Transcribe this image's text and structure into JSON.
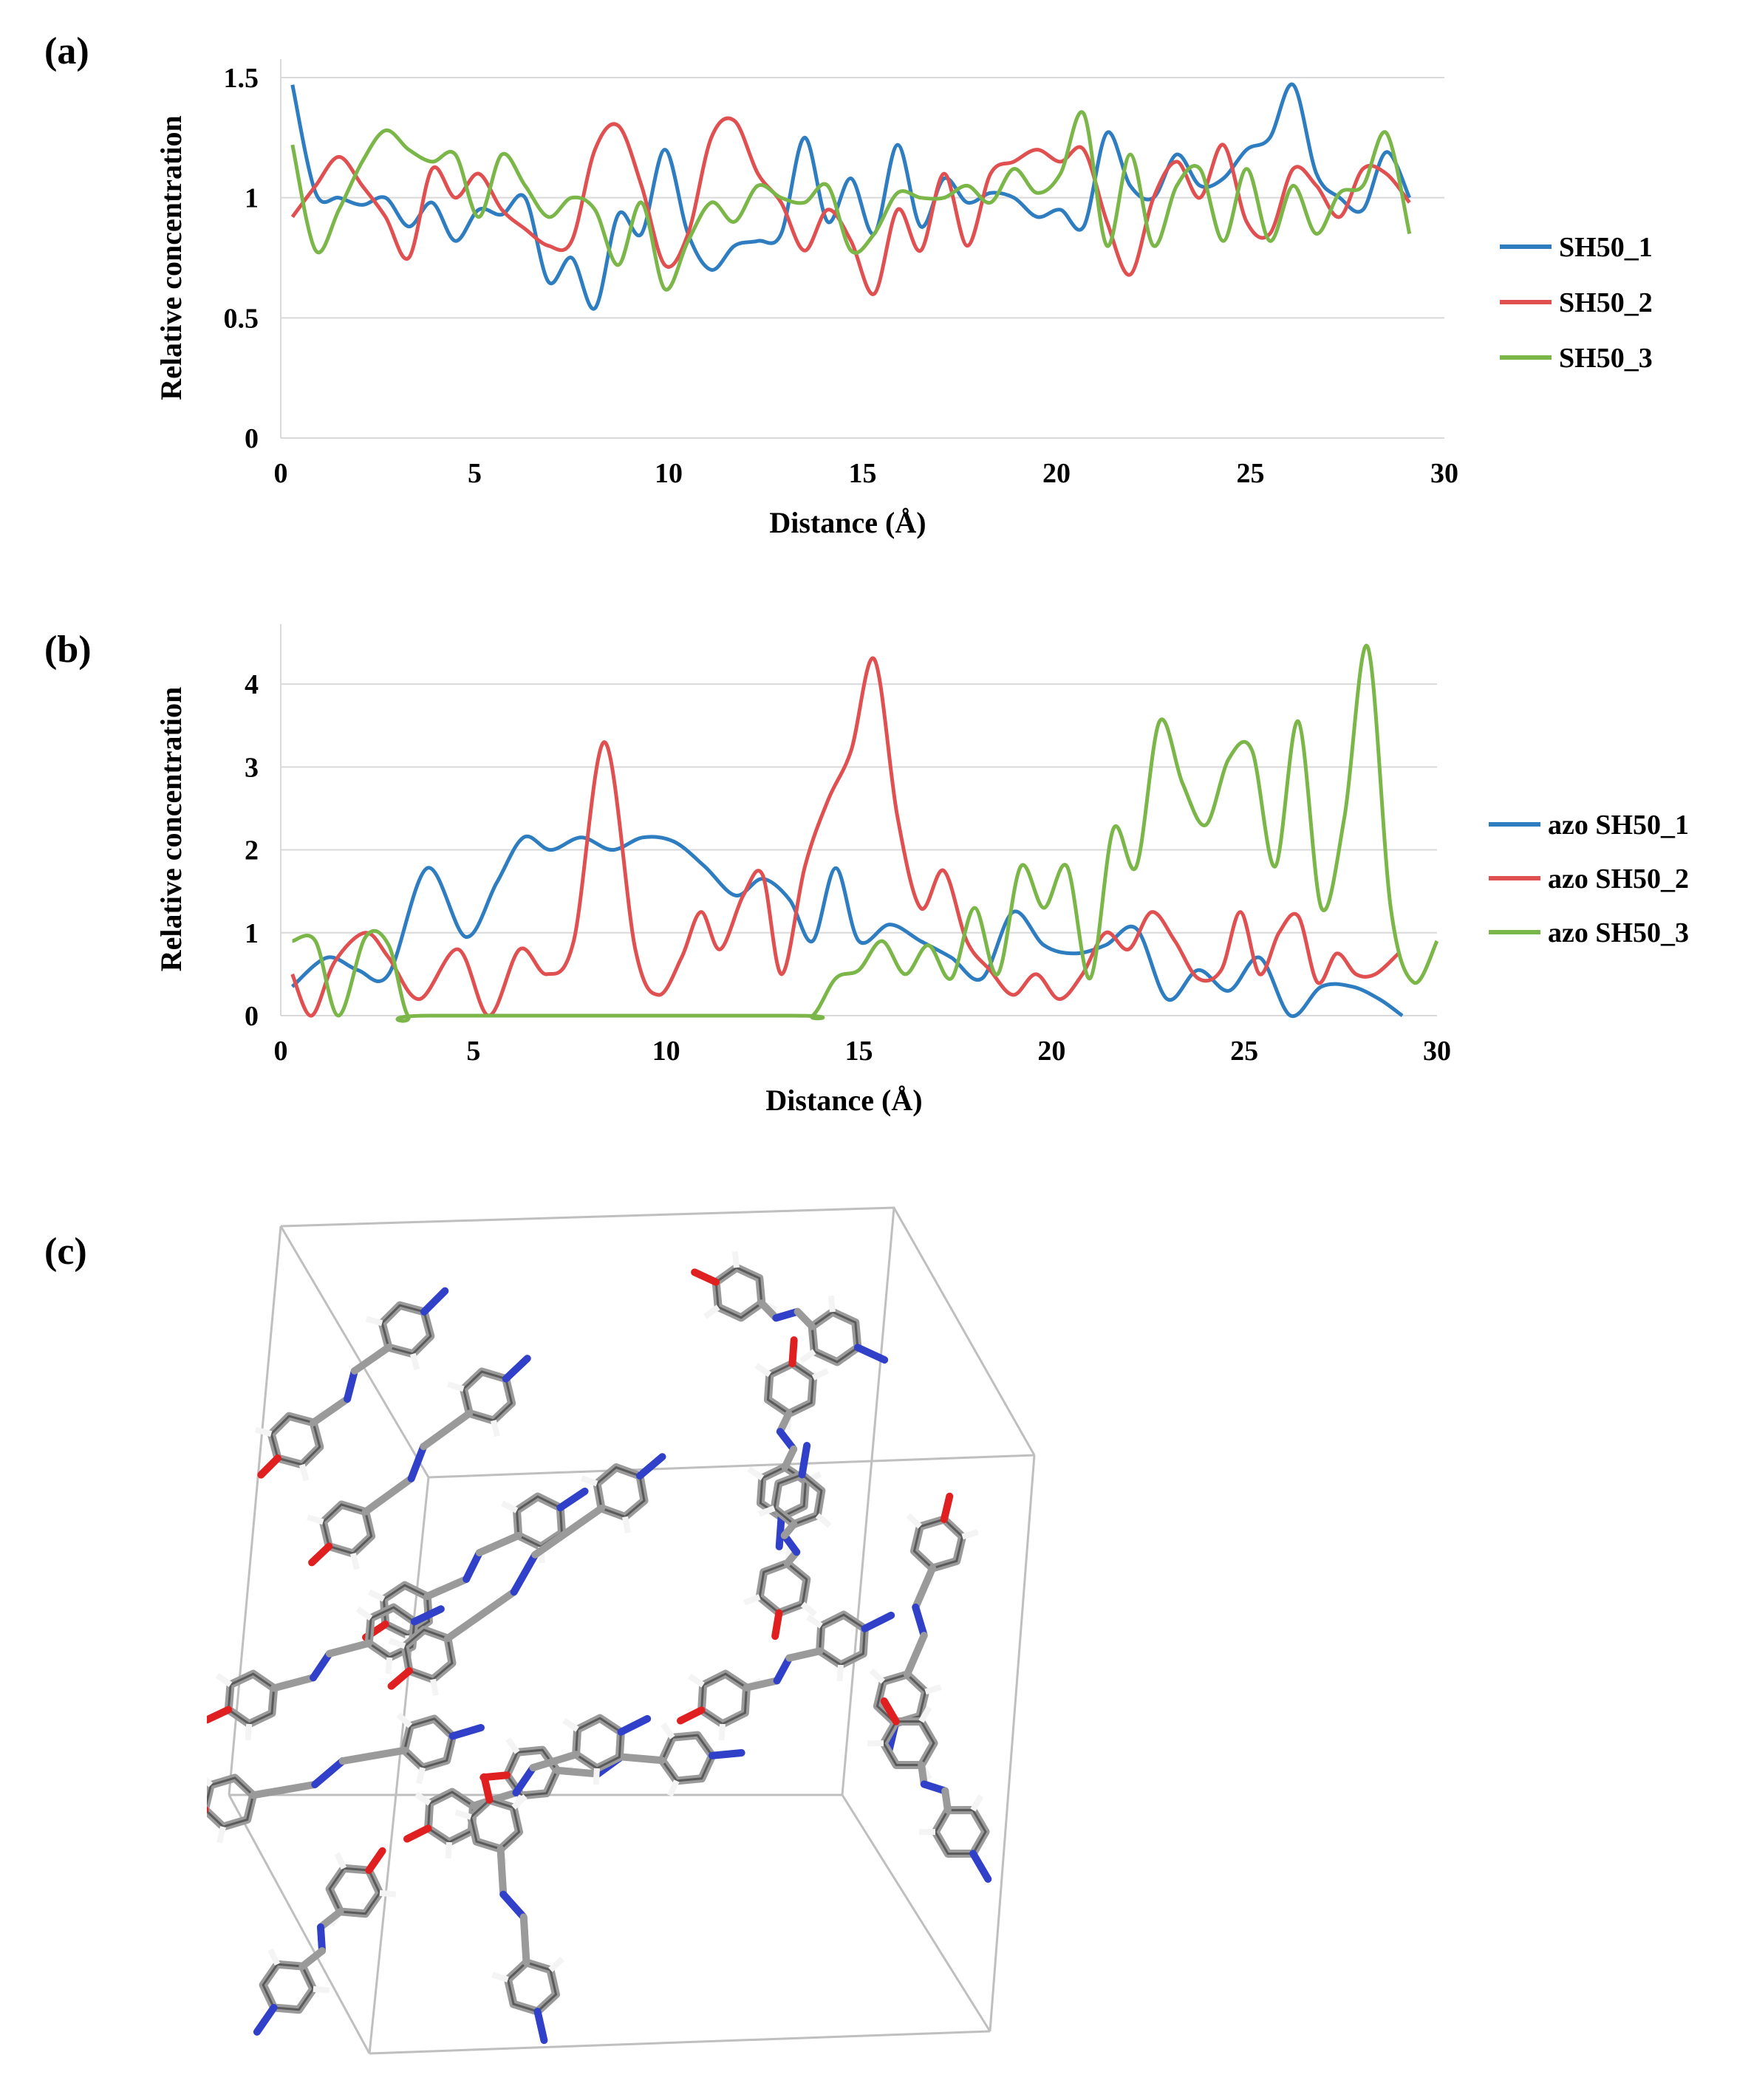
{
  "panels": [
    {
      "label": "(a)"
    },
    {
      "label": "(b)"
    },
    {
      "label": "(c)"
    }
  ],
  "colors": {
    "blue": "#2e7dc1",
    "red": "#e05050",
    "green": "#7ab648",
    "grid": "#d9d9d9",
    "box": "#bfbfbf"
  },
  "chart_data": [
    {
      "type": "line",
      "xlabel": "Distance (Å)",
      "ylabel": "Relative concentration",
      "xlim": [
        0,
        30
      ],
      "ylim": [
        0,
        1.5
      ],
      "xticks": [
        "0",
        "5",
        "10",
        "15",
        "20",
        "25",
        "30"
      ],
      "yticks": [
        "0",
        "0.5",
        "1",
        "1.5"
      ],
      "ytick_values": [
        0,
        0.5,
        1,
        1.5
      ],
      "grid": true,
      "legend_position": "right",
      "series": [
        {
          "name": "SH50_1",
          "color": "#2e7dc1",
          "x": [
            0.3,
            0.9,
            1.5,
            2.1,
            2.7,
            3.3,
            3.9,
            4.5,
            5.1,
            5.7,
            6.3,
            6.9,
            7.5,
            8.1,
            8.7,
            9.3,
            9.9,
            10.5,
            11.1,
            11.7,
            12.3,
            12.9,
            13.5,
            14.1,
            14.7,
            15.3,
            15.9,
            16.5,
            17.1,
            17.7,
            18.3,
            18.9,
            19.5,
            20.1,
            20.7,
            21.3,
            21.9,
            22.5,
            23.1,
            23.7,
            24.3,
            24.9,
            25.5,
            26.1,
            26.7,
            27.3,
            27.9,
            28.5,
            29.1
          ],
          "y": [
            1.47,
            1.02,
            1.0,
            0.97,
            1.0,
            0.88,
            0.98,
            0.82,
            0.95,
            0.93,
            1.0,
            0.65,
            0.75,
            0.54,
            0.93,
            0.85,
            1.2,
            0.85,
            0.7,
            0.8,
            0.82,
            0.85,
            1.25,
            0.9,
            1.08,
            0.85,
            1.22,
            0.88,
            1.08,
            0.98,
            1.02,
            1.0,
            0.92,
            0.95,
            0.88,
            1.27,
            1.05,
            1.0,
            1.18,
            1.05,
            1.08,
            1.2,
            1.25,
            1.47,
            1.1,
            1.0,
            0.95,
            1.19,
            1.0
          ]
        },
        {
          "name": "SH50_2",
          "color": "#e05050",
          "x": [
            0.3,
            0.9,
            1.5,
            2.1,
            2.7,
            3.3,
            3.9,
            4.5,
            5.1,
            5.7,
            6.3,
            6.9,
            7.5,
            8.1,
            8.7,
            9.3,
            9.9,
            10.5,
            11.1,
            11.7,
            12.3,
            12.9,
            13.5,
            14.1,
            14.7,
            15.3,
            15.9,
            16.5,
            17.1,
            17.7,
            18.3,
            18.9,
            19.5,
            20.1,
            20.7,
            21.3,
            21.9,
            22.5,
            23.1,
            23.7,
            24.3,
            24.9,
            25.5,
            26.1,
            26.7,
            27.3,
            27.9,
            28.5,
            29.1
          ],
          "y": [
            0.92,
            1.05,
            1.17,
            1.05,
            0.92,
            0.75,
            1.12,
            1.0,
            1.1,
            0.95,
            0.87,
            0.8,
            0.82,
            1.2,
            1.3,
            1.05,
            0.72,
            0.85,
            1.25,
            1.32,
            1.1,
            0.98,
            0.78,
            0.95,
            0.82,
            0.6,
            0.95,
            0.78,
            1.1,
            0.8,
            1.1,
            1.15,
            1.2,
            1.15,
            1.2,
            0.9,
            0.68,
            1.0,
            1.15,
            1.0,
            1.22,
            0.9,
            0.85,
            1.12,
            1.05,
            0.92,
            1.12,
            1.1,
            0.98
          ]
        },
        {
          "name": "SH50_3",
          "color": "#7ab648",
          "x": [
            0.3,
            0.9,
            1.5,
            2.1,
            2.7,
            3.3,
            3.9,
            4.5,
            5.1,
            5.7,
            6.3,
            6.9,
            7.5,
            8.1,
            8.7,
            9.3,
            9.9,
            10.5,
            11.1,
            11.7,
            12.3,
            12.9,
            13.5,
            14.1,
            14.7,
            15.3,
            15.9,
            16.5,
            17.1,
            17.7,
            18.3,
            18.9,
            19.5,
            20.1,
            20.7,
            21.3,
            21.9,
            22.5,
            23.1,
            23.7,
            24.3,
            24.9,
            25.5,
            26.1,
            26.7,
            27.3,
            27.9,
            28.5,
            29.1
          ],
          "y": [
            1.22,
            0.78,
            0.95,
            1.15,
            1.28,
            1.2,
            1.15,
            1.18,
            0.92,
            1.18,
            1.05,
            0.92,
            1.0,
            0.95,
            0.72,
            0.98,
            0.62,
            0.82,
            0.98,
            0.9,
            1.05,
            1.0,
            0.98,
            1.05,
            0.78,
            0.85,
            1.02,
            1.0,
            1.0,
            1.05,
            0.98,
            1.12,
            1.02,
            1.1,
            1.35,
            0.8,
            1.18,
            0.8,
            1.05,
            1.12,
            0.82,
            1.12,
            0.82,
            1.05,
            0.85,
            1.02,
            1.05,
            1.27,
            0.85
          ]
        }
      ]
    },
    {
      "type": "line",
      "xlabel": "Distance (Å)",
      "ylabel": "Relative concentration",
      "xlim": [
        0,
        30
      ],
      "ylim": [
        0,
        4.5
      ],
      "xticks": [
        "0",
        "5",
        "10",
        "15",
        "20",
        "25",
        "30"
      ],
      "yticks": [
        "0",
        "1",
        "2",
        "3",
        "4"
      ],
      "ytick_values": [
        0,
        1,
        2,
        3,
        4
      ],
      "grid": true,
      "legend_position": "right",
      "series": [
        {
          "name": "azo SH50_1",
          "color": "#2e7dc1",
          "x": [
            0.3,
            1.2,
            2.0,
            2.8,
            3.8,
            4.8,
            5.6,
            6.3,
            7.0,
            7.8,
            8.6,
            9.4,
            10.2,
            11.0,
            11.8,
            12.5,
            13.2,
            13.8,
            14.4,
            15.0,
            15.8,
            16.6,
            17.4,
            18.2,
            19.0,
            19.8,
            20.6,
            21.4,
            22.2,
            23.0,
            23.8,
            24.6,
            25.4,
            26.2,
            27.0,
            27.8,
            28.5,
            29.1
          ],
          "y": [
            0.35,
            0.7,
            0.55,
            0.5,
            1.78,
            0.95,
            1.6,
            2.15,
            2.0,
            2.15,
            2.0,
            2.15,
            2.1,
            1.8,
            1.45,
            1.65,
            1.4,
            0.9,
            1.78,
            0.9,
            1.1,
            0.9,
            0.7,
            0.45,
            1.25,
            0.85,
            0.75,
            0.85,
            1.05,
            0.2,
            0.55,
            0.3,
            0.7,
            0.0,
            0.35,
            0.35,
            0.2,
            0.0
          ]
        },
        {
          "name": "azo SH50_2",
          "color": "#e05050",
          "x": [
            0.3,
            0.8,
            1.4,
            2.2,
            2.8,
            3.6,
            4.6,
            5.4,
            6.2,
            6.9,
            7.6,
            8.4,
            9.2,
            9.8,
            10.4,
            10.9,
            11.4,
            12.0,
            12.5,
            13.0,
            13.6,
            14.2,
            14.8,
            15.4,
            16.0,
            16.6,
            17.2,
            17.8,
            18.4,
            19.0,
            19.6,
            20.2,
            20.8,
            21.4,
            22.0,
            22.6,
            23.2,
            23.8,
            24.4,
            24.9,
            25.4,
            25.9,
            26.4,
            26.9,
            27.4,
            27.9,
            28.4,
            29.0
          ],
          "y": [
            0.5,
            0.0,
            0.65,
            1.0,
            0.7,
            0.2,
            0.8,
            0.0,
            0.8,
            0.5,
            0.9,
            3.3,
            0.8,
            0.25,
            0.7,
            1.25,
            0.8,
            1.45,
            1.7,
            0.5,
            1.8,
            2.6,
            3.2,
            4.3,
            2.4,
            1.3,
            1.75,
            0.9,
            0.55,
            0.25,
            0.5,
            0.2,
            0.5,
            1.0,
            0.8,
            1.25,
            0.9,
            0.45,
            0.55,
            1.25,
            0.5,
            1.0,
            1.2,
            0.4,
            0.75,
            0.5,
            0.5,
            0.75
          ]
        },
        {
          "name": "azo SH50_3",
          "color": "#7ab648",
          "x": [
            0.3,
            0.9,
            1.5,
            2.2,
            2.8,
            3.3,
            3.9,
            13.2,
            13.8,
            14.4,
            15.0,
            15.6,
            16.2,
            16.8,
            17.4,
            18.0,
            18.6,
            19.2,
            19.8,
            20.4,
            21.0,
            21.6,
            22.2,
            22.8,
            23.4,
            24.0,
            24.6,
            25.2,
            25.8,
            26.4,
            27.0,
            27.6,
            28.2,
            28.8,
            29.4,
            30.0
          ],
          "y": [
            0.9,
            0.9,
            0.0,
            0.95,
            0.85,
            0.0,
            0.0,
            0.0,
            0.0,
            0.45,
            0.55,
            0.9,
            0.5,
            0.85,
            0.45,
            1.3,
            0.5,
            1.8,
            1.3,
            1.8,
            0.45,
            2.25,
            1.8,
            3.55,
            2.8,
            2.3,
            3.1,
            3.2,
            1.8,
            3.55,
            1.3,
            2.4,
            4.45,
            1.3,
            0.4,
            0.9
          ]
        }
      ]
    }
  ]
}
